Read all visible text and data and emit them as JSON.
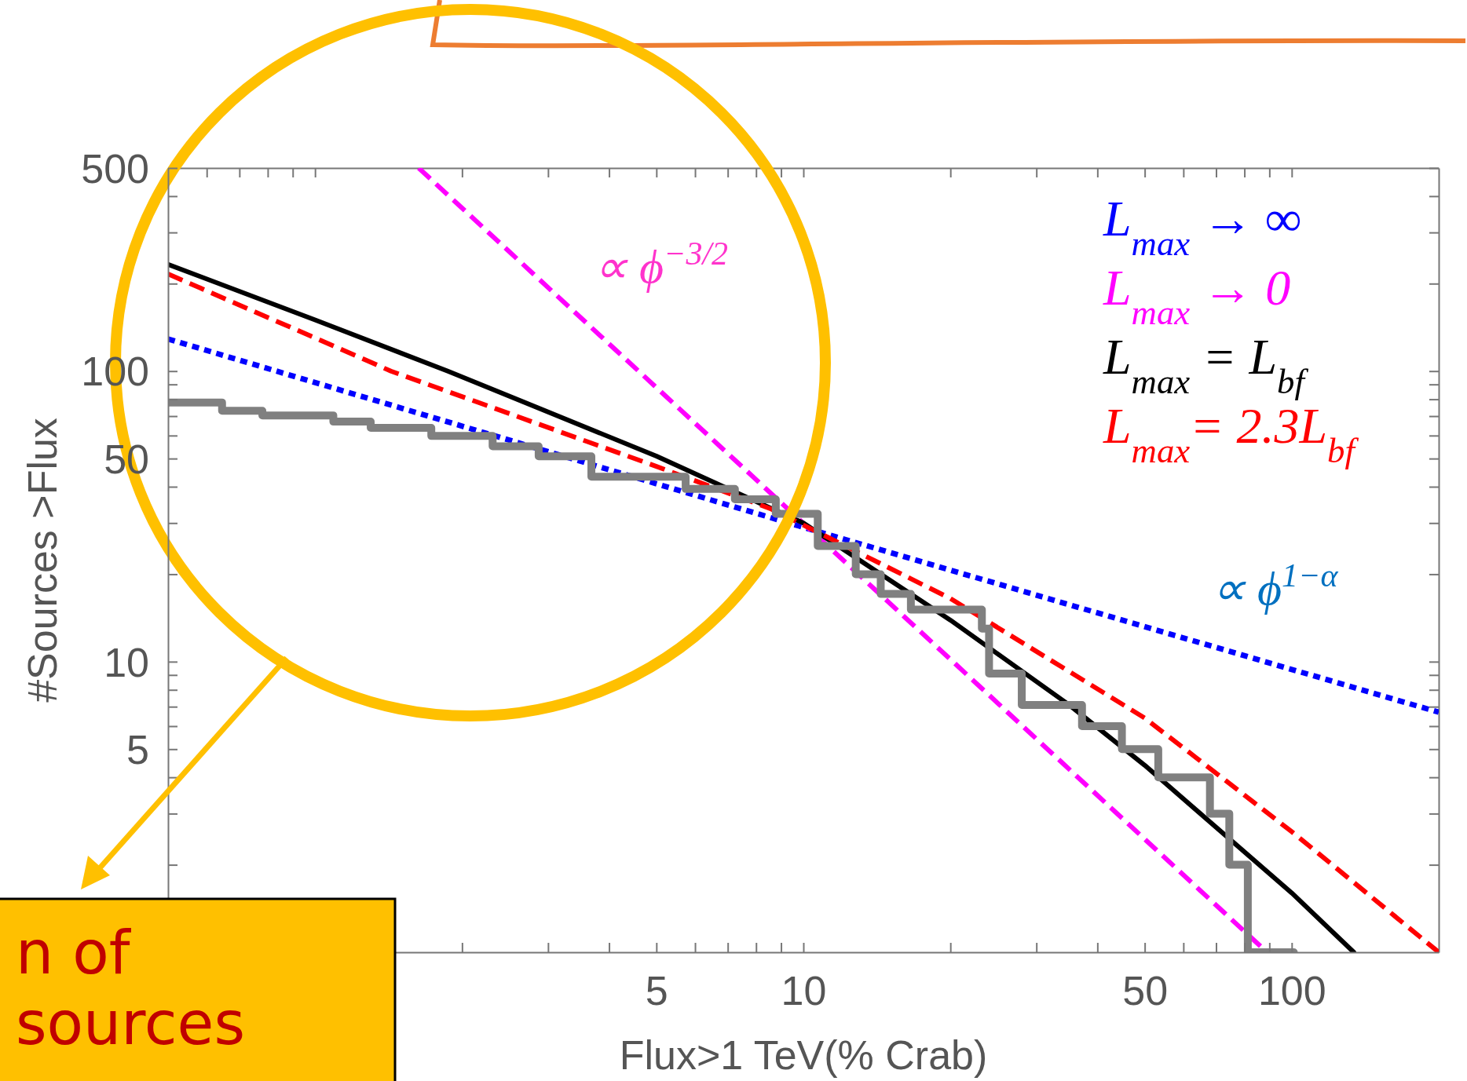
{
  "chart_data": {
    "type": "line",
    "xlabel": "Flux>1 TeV(% Crab)",
    "ylabel": "#Sources >Flux",
    "log": "xy",
    "grid": false,
    "legend": "top right",
    "marker": "none",
    "xlim": [
      0.5,
      200
    ],
    "ylim": [
      1,
      500
    ],
    "xticks": [
      {
        "value": 0.6,
        "label": null
      },
      {
        "value": 0.7,
        "label": null
      },
      {
        "value": 0.8,
        "label": null
      },
      {
        "value": 0.9,
        "label": null
      },
      {
        "value": 1,
        "label": null
      },
      {
        "value": 2,
        "label": null
      },
      {
        "value": 3,
        "label": null
      },
      {
        "value": 4,
        "label": null
      },
      5,
      {
        "value": 6,
        "label": null
      },
      {
        "value": 7,
        "label": null
      },
      {
        "value": 8,
        "label": null
      },
      {
        "value": 9,
        "label": null
      },
      10,
      {
        "value": 20,
        "label": null
      },
      {
        "value": 30,
        "label": null
      },
      {
        "value": 40,
        "label": null
      },
      50,
      {
        "value": 60,
        "label": null
      },
      {
        "value": 70,
        "label": null
      },
      {
        "value": 80,
        "label": null
      },
      {
        "value": 90,
        "label": null
      },
      100
    ],
    "yticks": [
      {
        "value": 2,
        "label": null
      },
      {
        "value": 3,
        "label": null
      },
      {
        "value": 4,
        "label": null
      },
      5,
      {
        "value": 6,
        "label": null
      },
      {
        "value": 7,
        "label": null
      },
      {
        "value": 8,
        "label": null
      },
      {
        "value": 9,
        "label": null
      },
      10,
      {
        "value": 20,
        "label": null
      },
      {
        "value": 30,
        "label": null
      },
      {
        "value": 40,
        "label": null
      },
      50,
      {
        "value": 60,
        "label": null
      },
      {
        "value": 70,
        "label": null
      },
      {
        "value": 80,
        "label": null
      },
      {
        "value": 90,
        "label": null
      },
      100,
      {
        "value": 200,
        "label": null
      },
      {
        "value": 300,
        "label": null
      },
      {
        "value": 400,
        "label": null
      },
      500
    ],
    "series": [
      {
        "name": "L$_{max}$ → ∞",
        "color": "#0000ff",
        "line_style": "dotted",
        "x": [
          0.5,
          10,
          200
        ],
        "values": [
          129,
          29,
          6.7
        ]
      },
      {
        "name": "L$_{max}$ → 0",
        "color": "#ff00ff",
        "line_style": "dashed",
        "x": [
          1.63,
          8.8,
          89
        ],
        "values": [
          500,
          36.5,
          1
        ]
      },
      {
        "name": "L$_{max}$ = L$_{bf}$",
        "color": "#000000",
        "line_style": "solid",
        "x": [
          0.5,
          1,
          1.87,
          5,
          10,
          20,
          35,
          50,
          100,
          134
        ],
        "values": [
          233,
          150,
          100,
          51,
          30,
          13.9,
          7.1,
          4.4,
          1.6,
          1
        ]
      },
      {
        "name": "L$_{max}$= 2.3L$_{bf}$",
        "color": "#ff0000",
        "line_style": "dashed",
        "x": [
          0.5,
          1,
          1.43,
          5,
          8.6,
          20,
          50,
          100,
          113,
          200
        ],
        "values": [
          216,
          130,
          100,
          47,
          33.5,
          16.5,
          6.4,
          2.6,
          2.2,
          1
        ]
      },
      {
        "type": "step",
        "color": "#808080",
        "line_style": "solid",
        "x": [
          0.5,
          0.645,
          0.78,
          1.09,
          1.3,
          1.73,
          2.31,
          2.87,
          3.68,
          5.74,
          7.24,
          8.78,
          10.7,
          12.8,
          14.4,
          16.6,
          23.2,
          24,
          28,
          37.2,
          44.9,
          53.3,
          68,
          74.5,
          81.3,
          101
        ],
        "values": [
          78,
          73,
          70.4,
          67,
          63.8,
          59.8,
          55.1,
          50.9,
          43.3,
          39.3,
          36.2,
          32.3,
          25,
          20,
          17.1,
          15.1,
          13,
          9.1,
          7.1,
          6,
          5,
          4,
          3,
          2,
          1,
          1
        ]
      }
    ],
    "annotations": [
      "∝ ϕ$^{−3/2}$",
      "∝ ϕ$^{1−α}$",
      "n of\nsources"
    ]
  }
}
